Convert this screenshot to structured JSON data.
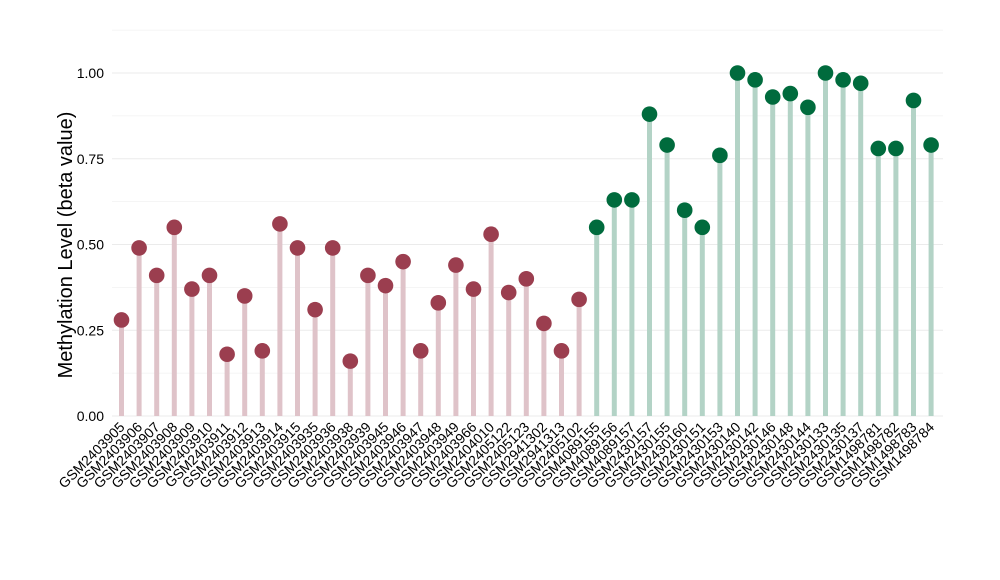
{
  "chart_data": {
    "type": "lollipop",
    "title": "",
    "xlabel": "",
    "ylabel": "Methylation Level (beta value)",
    "ylim": [
      0,
      1.05
    ],
    "yticks": [
      0.0,
      0.25,
      0.5,
      0.75,
      1.0
    ],
    "ytick_labels": [
      "0.00",
      "0.25",
      "0.50",
      "0.75",
      "1.00"
    ],
    "grid": true,
    "legend": "none",
    "categories": [
      "GSM2403905",
      "GSM2403906",
      "GSM2403907",
      "GSM2403908",
      "GSM2403909",
      "GSM2403910",
      "GSM2403911",
      "GSM2403912",
      "GSM2403913",
      "GSM2403914",
      "GSM2403915",
      "GSM2403935",
      "GSM2403936",
      "GSM2403938",
      "GSM2403939",
      "GSM2403945",
      "GSM2403946",
      "GSM2403947",
      "GSM2403948",
      "GSM2403949",
      "GSM2403966",
      "GSM2404010",
      "GSM2405122",
      "GSM2405123",
      "GSM2941302",
      "GSM2941313",
      "GSM2405102",
      "GSM4089155",
      "GSM4089156",
      "GSM4089157",
      "GSM2430157",
      "GSM2430155",
      "GSM2430160",
      "GSM2430151",
      "GSM2430153",
      "GSM2430140",
      "GSM2430142",
      "GSM2430146",
      "GSM2430148",
      "GSM2430144",
      "GSM2430133",
      "GSM2430135",
      "GSM2430137",
      "GSM1498781",
      "GSM1498782",
      "GSM1498783",
      "GSM1498784"
    ],
    "values": [
      0.28,
      0.49,
      0.41,
      0.55,
      0.37,
      0.41,
      0.18,
      0.35,
      0.19,
      0.56,
      0.49,
      0.31,
      0.49,
      0.16,
      0.41,
      0.38,
      0.45,
      0.19,
      0.33,
      0.44,
      0.37,
      0.53,
      0.36,
      0.4,
      0.27,
      0.19,
      0.34,
      0.55,
      0.63,
      0.63,
      0.88,
      0.79,
      0.6,
      0.55,
      0.76,
      1.0,
      0.98,
      0.93,
      0.94,
      0.9,
      1.0,
      0.98,
      0.97,
      0.78,
      0.78,
      0.92,
      0.79
    ],
    "groups": [
      "low",
      "low",
      "low",
      "low",
      "low",
      "low",
      "low",
      "low",
      "low",
      "low",
      "low",
      "low",
      "low",
      "low",
      "low",
      "low",
      "low",
      "low",
      "low",
      "low",
      "low",
      "low",
      "low",
      "low",
      "low",
      "low",
      "low",
      "high",
      "high",
      "high",
      "high",
      "high",
      "high",
      "high",
      "high",
      "high",
      "high",
      "high",
      "high",
      "high",
      "high",
      "high",
      "high",
      "high",
      "high",
      "high",
      "high"
    ],
    "colors": {
      "low_point": "#9b3e4f",
      "low_stem": "#dfc3c9",
      "high_point": "#006b3d",
      "high_stem": "#b3d3c6",
      "grid": "#ebebeb"
    }
  }
}
